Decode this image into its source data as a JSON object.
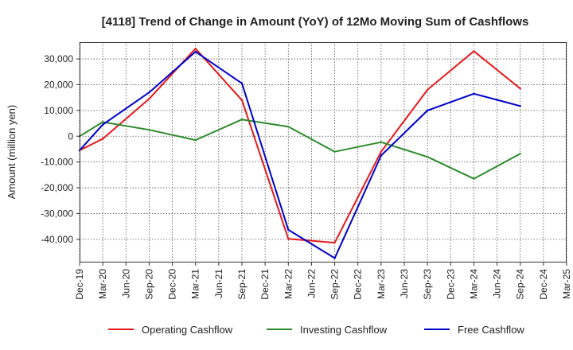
{
  "chart_data": {
    "type": "line",
    "title": "[4118]  Trend of Change in Amount (YoY) of 12Mo Moving Sum of Cashflows",
    "xlabel": "",
    "ylabel": "Amount (million yen)",
    "ylim": [
      -49000,
      36500
    ],
    "yticks": [
      30000,
      20000,
      10000,
      0,
      -10000,
      -20000,
      -30000,
      -40000
    ],
    "ytick_labels": [
      "30,000",
      "20,000",
      "10,000",
      "0",
      "-10,000",
      "-20,000",
      "-30,000",
      "-40,000"
    ],
    "categories": [
      "Dec-19",
      "Mar-20",
      "Jun-20",
      "Sep-20",
      "Dec-20",
      "Mar-21",
      "Jun-21",
      "Sep-21",
      "Dec-21",
      "Mar-22",
      "Jun-22",
      "Sep-22",
      "Dec-22",
      "Mar-23",
      "Jun-23",
      "Sep-23",
      "Dec-23",
      "Mar-24",
      "Jun-24",
      "Sep-24",
      "Dec-24",
      "Mar-25"
    ],
    "series": [
      {
        "name": "Operating Cashflow",
        "color": "#e31a1c",
        "points": [
          {
            "x": "Dec-19",
            "y": -5500
          },
          {
            "x": "Mar-20",
            "y": -1000
          },
          {
            "x": "Sep-20",
            "y": 14500
          },
          {
            "x": "Mar-21",
            "y": 34000
          },
          {
            "x": "Sep-21",
            "y": 14000
          },
          {
            "x": "Mar-22",
            "y": -39800
          },
          {
            "x": "Sep-22",
            "y": -41300
          },
          {
            "x": "Mar-23",
            "y": -6000
          },
          {
            "x": "Sep-23",
            "y": 18000
          },
          {
            "x": "Mar-24",
            "y": 33000
          },
          {
            "x": "Sep-24",
            "y": 18500
          }
        ]
      },
      {
        "name": "Investing Cashflow",
        "color": "#2e8b2e",
        "points": [
          {
            "x": "Dec-19",
            "y": 0
          },
          {
            "x": "Mar-20",
            "y": 5500
          },
          {
            "x": "Sep-20",
            "y": 2500
          },
          {
            "x": "Mar-21",
            "y": -1500
          },
          {
            "x": "Sep-21",
            "y": 6500
          },
          {
            "x": "Mar-22",
            "y": 3700
          },
          {
            "x": "Sep-22",
            "y": -6000
          },
          {
            "x": "Mar-23",
            "y": -2300
          },
          {
            "x": "Sep-23",
            "y": -8000
          },
          {
            "x": "Mar-24",
            "y": -16500
          },
          {
            "x": "Sep-24",
            "y": -6800
          }
        ]
      },
      {
        "name": "Free Cashflow",
        "color": "#0000cc",
        "points": [
          {
            "x": "Dec-19",
            "y": -5500
          },
          {
            "x": "Mar-20",
            "y": 4500
          },
          {
            "x": "Sep-20",
            "y": 17000
          },
          {
            "x": "Mar-21",
            "y": 32800
          },
          {
            "x": "Sep-21",
            "y": 20500
          },
          {
            "x": "Mar-22",
            "y": -36300
          },
          {
            "x": "Sep-22",
            "y": -47300
          },
          {
            "x": "Mar-23",
            "y": -7500
          },
          {
            "x": "Sep-23",
            "y": 10000
          },
          {
            "x": "Mar-24",
            "y": 16500
          },
          {
            "x": "Sep-24",
            "y": 11700
          }
        ]
      }
    ],
    "grid": true,
    "legend_position": "bottom"
  }
}
